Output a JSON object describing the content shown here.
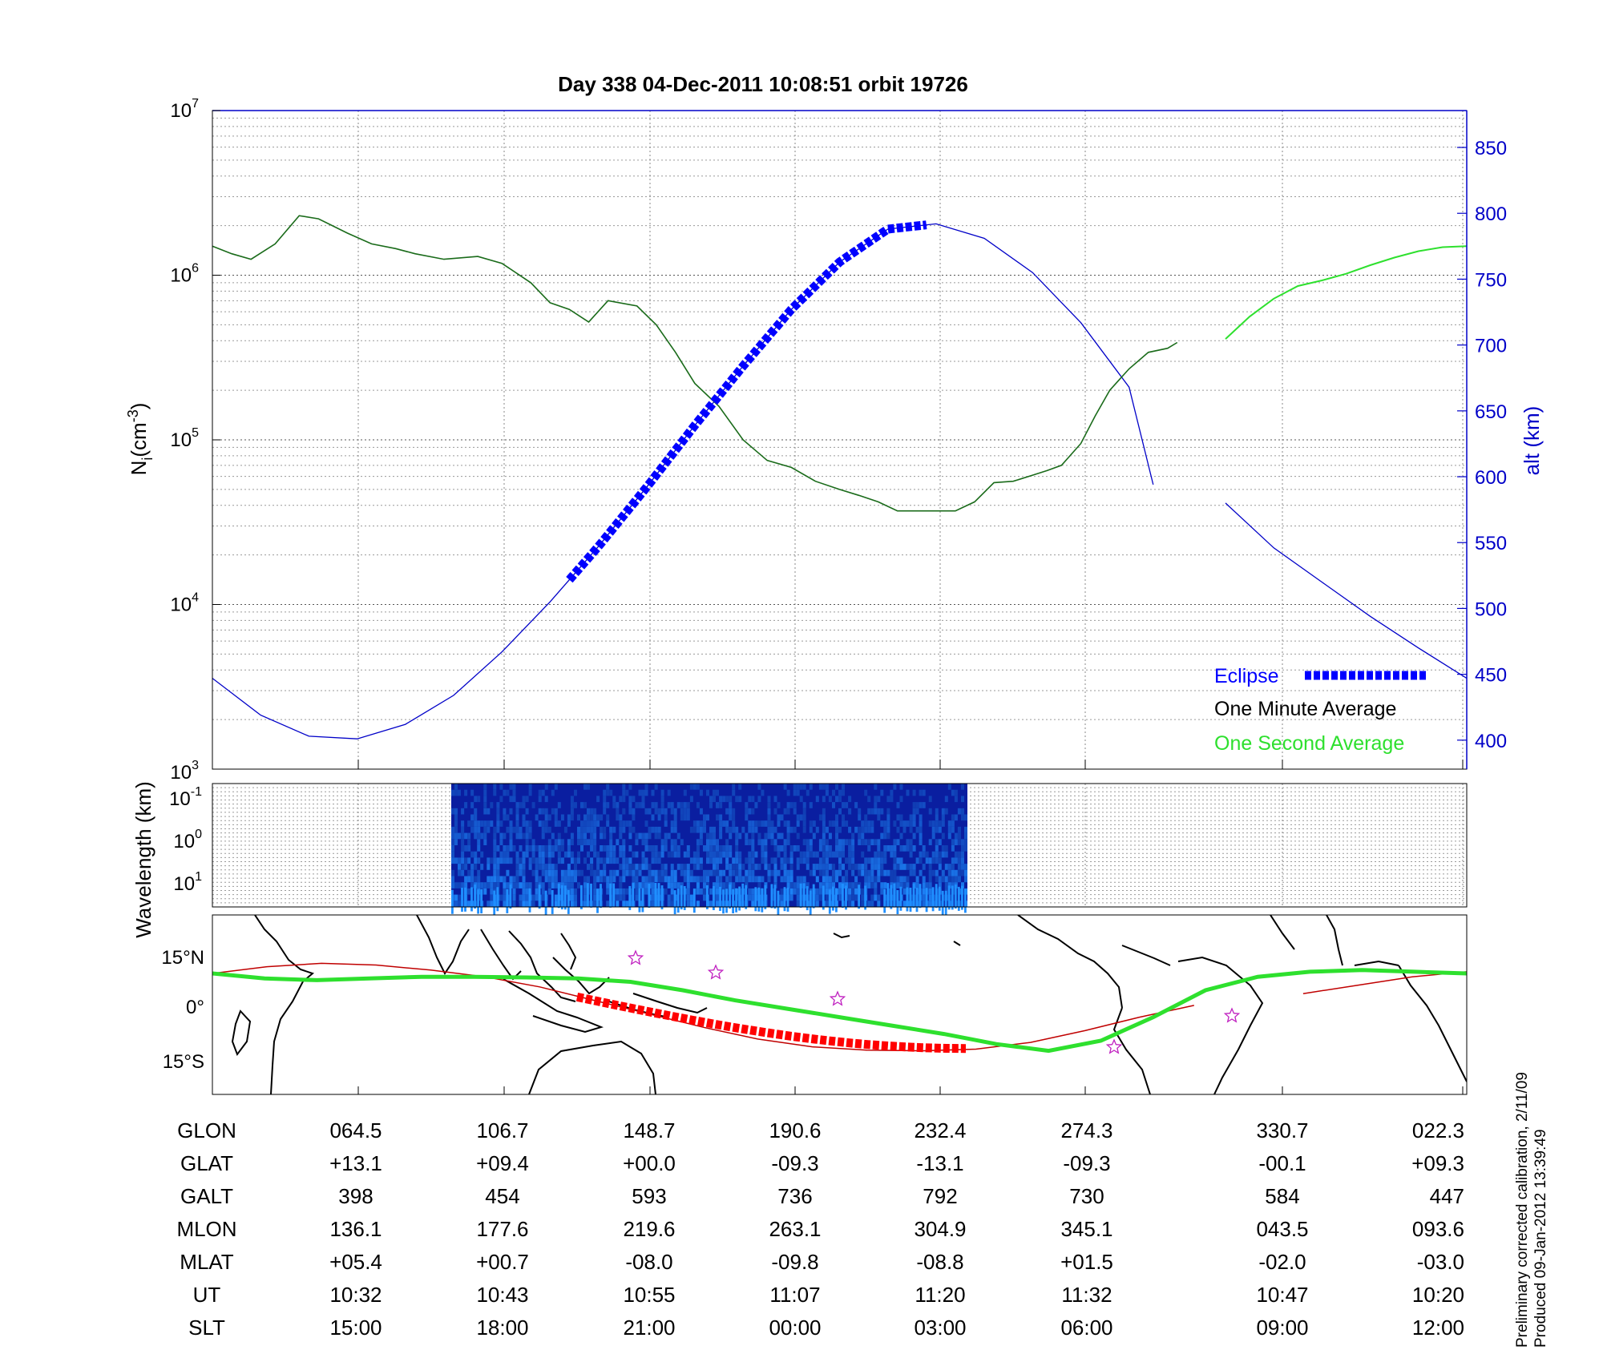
{
  "title": "Day 338  04-Dec-2011 10:08:51   orbit 19726",
  "chart_data": [
    {
      "type": "line",
      "panel": "density-altitude",
      "y_log": true,
      "ylabel_base": "N",
      "ylabel_sub": "i",
      "ylabel_unit": "(cm",
      "ylabel_unit_sup": "-3",
      "ylabel_unit_close": ")",
      "ylim": [
        1000,
        10000000
      ],
      "y_ticks": [
        {
          "base": "10",
          "exp": "3"
        },
        {
          "base": "10",
          "exp": "4"
        },
        {
          "base": "10",
          "exp": "5"
        },
        {
          "base": "10",
          "exp": "6"
        },
        {
          "base": "10",
          "exp": "7"
        }
      ],
      "y2label": "alt (km)",
      "y2lim": [
        378,
        878
      ],
      "y2_ticks": [
        "400",
        "450",
        "500",
        "550",
        "600",
        "650",
        "700",
        "750",
        "800",
        "850"
      ],
      "xlim": [
        0,
        8.5
      ],
      "x_desc": "UT minutes after 10:22",
      "series": [
        {
          "name": "One Minute Average",
          "color": "#1a6b1a",
          "x": [
            0,
            4,
            8,
            13,
            18,
            22,
            28,
            33,
            38,
            42,
            48,
            55,
            60,
            66,
            70,
            74,
            78,
            82,
            88,
            92,
            96,
            100,
            105,
            110,
            115,
            120,
            125,
            130,
            134,
            138,
            142,
            146,
            150,
            154,
            158,
            162,
            166,
            170,
            173,
            176,
            180,
            183,
            186,
            190,
            194,
            198,
            200
          ],
          "y": [
            1500000,
            1350000,
            1250000,
            1550000,
            2300000,
            2200000,
            1800000,
            1550000,
            1450000,
            1350000,
            1250000,
            1300000,
            1180000,
            900000,
            680000,
            620000,
            520000,
            700000,
            650000,
            500000,
            340000,
            220000,
            160000,
            100000,
            75000,
            68000,
            56000,
            50000,
            46000,
            42000,
            37000,
            37000,
            37000,
            37000,
            42000,
            55000,
            56000,
            61000,
            65000,
            70000,
            95000,
            140000,
            200000,
            270000,
            340000,
            360000,
            390000
          ]
        },
        {
          "name": "One Second Average",
          "color": "#2ee02e",
          "x": [
            210,
            215,
            220,
            225,
            230,
            235,
            240,
            245,
            250,
            255,
            260
          ],
          "y": [
            410000,
            560000,
            720000,
            860000,
            930000,
            1020000,
            1150000,
            1280000,
            1400000,
            1480000,
            1500000
          ]
        },
        {
          "name": "alt",
          "axis": "right",
          "color": "#0000c8",
          "x": [
            0,
            10,
            20,
            30,
            40,
            50,
            60,
            70,
            80,
            90,
            100,
            110,
            120,
            130,
            140,
            150,
            160,
            170,
            180,
            190,
            195,
            210,
            220,
            230,
            240,
            250,
            260
          ],
          "y": [
            447,
            419,
            403,
            401,
            412,
            434,
            467,
            505,
            547,
            592,
            639,
            684,
            727,
            763,
            788,
            792,
            781,
            755,
            717,
            668,
            594,
            580,
            546,
            520,
            494,
            470,
            447
          ]
        }
      ],
      "eclipse": {
        "label": "Eclipse",
        "color": "#0000ff",
        "x_start": 74,
        "x_end": 148
      },
      "legend": [
        "Eclipse",
        "One Minute Average",
        "One Second Average"
      ],
      "legend_position": "bottom-right",
      "grid": true
    },
    {
      "type": "heatmap",
      "panel": "wavelength-spectrogram",
      "ylabel": "Wavelength (km)",
      "y_log": true,
      "y_ticks": [
        {
          "base": "10",
          "exp": "-1"
        },
        {
          "base": "10",
          "exp": "0"
        },
        {
          "base": "10",
          "exp": "1"
        }
      ],
      "x_start_ut": "10:38",
      "x_end_ut": "11:22",
      "colormap": "dark blue to cyan",
      "grid": true
    },
    {
      "type": "map",
      "panel": "ground-track",
      "y_ticks": [
        "15°N",
        "0°",
        "15°S"
      ],
      "track_color": "#2ee02e",
      "model_track_color": "#c00000",
      "eclipse_track_color": "#ff0000",
      "star_color": "#c020c0",
      "stars": 5
    }
  ],
  "x_axis_table": {
    "row_labels": [
      "GLON",
      "GLAT",
      "GALT",
      "MLON",
      "MLAT",
      "UT",
      "SLT"
    ],
    "columns": [
      [
        "064.5",
        "+13.1",
        "398",
        "136.1",
        "+05.4",
        "10:32",
        "15:00"
      ],
      [
        "106.7",
        "+09.4",
        "454",
        "177.6",
        "+00.7",
        "10:43",
        "18:00"
      ],
      [
        "148.7",
        "+00.0",
        "593",
        "219.6",
        "-08.0",
        "10:55",
        "21:00"
      ],
      [
        "190.6",
        "-09.3",
        "736",
        "263.1",
        "-09.8",
        "11:07",
        "00:00"
      ],
      [
        "232.4",
        "-13.1",
        "792",
        "304.9",
        "-08.8",
        "11:20",
        "03:00"
      ],
      [
        "274.3",
        "-09.3",
        "730",
        "345.1",
        "+01.5",
        "11:32",
        "06:00"
      ],
      [
        "330.7",
        "-00.1",
        "584",
        "043.5",
        "-02.0",
        "10:47",
        "09:00"
      ],
      [
        "022.3",
        "+09.3",
        "447",
        "093.6",
        "-03.0",
        "10:20",
        "12:00"
      ]
    ]
  },
  "side_note": {
    "line1": "Preliminary corrected calibration, 2/11/09",
    "line2": "Produced 09-Jan-2012 13:39:49"
  },
  "colors": {
    "alt_axis": "#0000c8",
    "eclipse": "#0000ff",
    "grid": "#777777"
  }
}
